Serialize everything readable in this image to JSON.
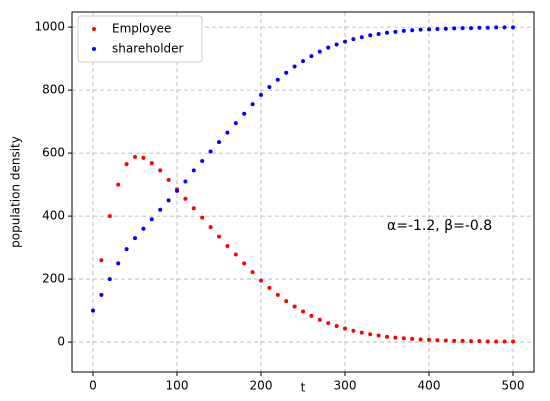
{
  "chart_data": {
    "type": "scatter",
    "x_label": "t",
    "y_label": "population density",
    "annotation": "α=-1.2, β=-0.8",
    "x": [
      0,
      10,
      20,
      30,
      40,
      50,
      60,
      70,
      80,
      90,
      100,
      110,
      120,
      130,
      140,
      150,
      160,
      170,
      180,
      190,
      200,
      210,
      220,
      230,
      240,
      250,
      260,
      270,
      280,
      290,
      300,
      310,
      320,
      330,
      340,
      350,
      360,
      370,
      380,
      390,
      400,
      410,
      420,
      430,
      440,
      450,
      460,
      470,
      480,
      490,
      500
    ],
    "series": [
      {
        "name": "Employee",
        "color": "#ff0000",
        "values": [
          100,
          260,
          400,
          500,
          565,
          588,
          585,
          568,
          545,
          515,
          485,
          455,
          425,
          395,
          365,
          335,
          305,
          278,
          250,
          222,
          195,
          172,
          150,
          130,
          113,
          97,
          83,
          71,
          60,
          51,
          43,
          36,
          30,
          25,
          21,
          17,
          14,
          12,
          10,
          8,
          7,
          6,
          5,
          4,
          4,
          3,
          3,
          2,
          2,
          2,
          2
        ]
      },
      {
        "name": "shareholder",
        "color": "#0000ff",
        "values": [
          100,
          150,
          200,
          250,
          295,
          330,
          360,
          390,
          420,
          450,
          480,
          510,
          545,
          575,
          605,
          635,
          665,
          695,
          725,
          755,
          785,
          810,
          833,
          855,
          875,
          892,
          908,
          922,
          935,
          945,
          954,
          962,
          968,
          974,
          978,
          982,
          985,
          988,
          990,
          992,
          993,
          994,
          995,
          996,
          997,
          997,
          998,
          998,
          999,
          999,
          999
        ]
      }
    ],
    "xlim": [
      -25,
      525
    ],
    "ylim": [
      -95,
      1048
    ],
    "xticks": [
      0,
      100,
      200,
      300,
      400,
      500
    ],
    "yticks": [
      0,
      200,
      400,
      600,
      800,
      1000
    ],
    "grid": true,
    "legend": "upper-left"
  }
}
